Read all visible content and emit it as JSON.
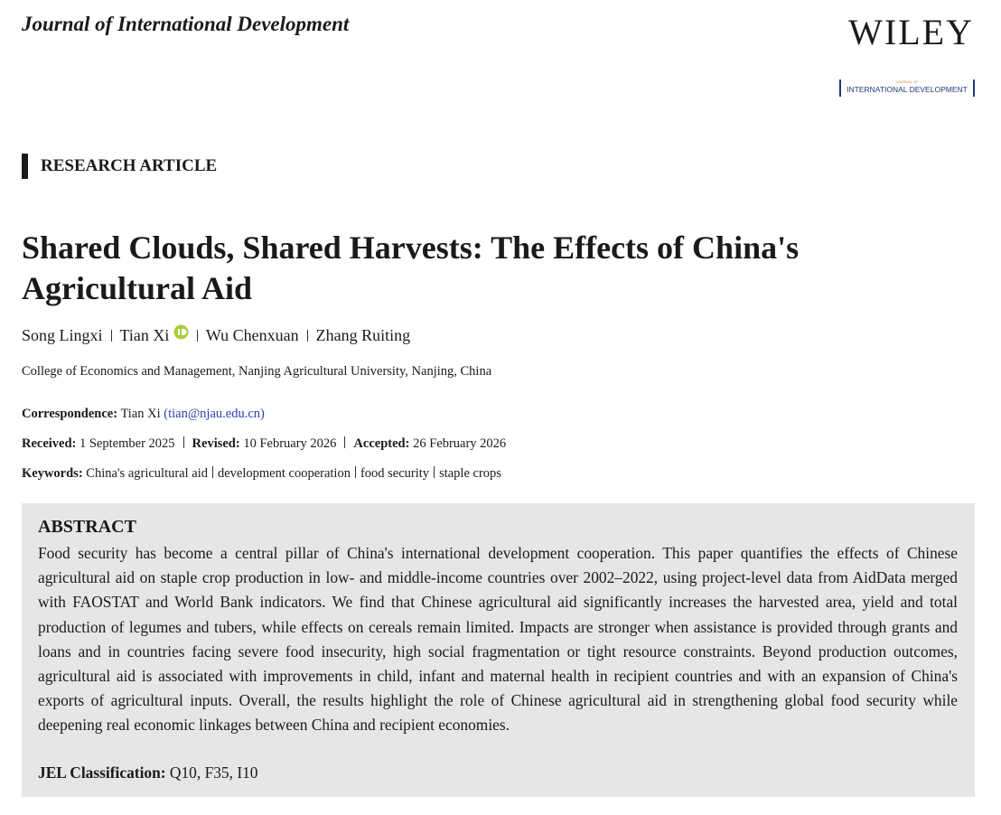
{
  "header": {
    "journal": "Journal of International Development",
    "publisher": "WILEY",
    "logo_top": "JOURNAL OF",
    "logo_main": "INTERNATIONAL DEVELOPMENT"
  },
  "article": {
    "section": "RESEARCH ARTICLE",
    "title": "Shared Clouds, Shared Harvests: The Effects of China's Agricultural Aid",
    "authors": [
      "Song Lingxi",
      "Tian Xi",
      "Wu Chenxuan",
      "Zhang Ruiting"
    ],
    "affiliation": "College of Economics and Management, Nanjing Agricultural University, Nanjing, China",
    "correspondence": {
      "label": "Correspondence:",
      "name": "Tian Xi",
      "email": "(tian@njau.edu.cn)"
    },
    "dates": [
      {
        "label": "Received:",
        "value": "1 September 2025"
      },
      {
        "label": "Revised:",
        "value": "10 February 2026"
      },
      {
        "label": "Accepted:",
        "value": "26 February 2026"
      }
    ],
    "keywords": {
      "label": "Keywords:",
      "items": [
        "China's agricultural aid",
        "development cooperation",
        "food security",
        "staple crops"
      ]
    },
    "abstract": {
      "heading": "ABSTRACT",
      "text": "Food security has become a central pillar of China's international development cooperation. This paper quantifies the effects of Chinese agricultural aid on staple crop production in low- and middle-income countries over 2002–2022, using project-level data from AidData merged with FAOSTAT and World Bank indicators. We find that Chinese agricultural aid significantly increases the harvested area, yield and total production of legumes and tubers, while effects on cereals remain limited. Impacts are stronger when assistance is provided through grants and loans and in countries facing severe food insecurity, high social fragmentation or tight resource constraints. Beyond production outcomes, agricultural aid is associated with improvements in child, infant and maternal health in recipient countries and with an expansion of China's exports of agricultural inputs. Overall, the results highlight the role of Chinese agricultural aid in strengthening global food security while deepening real economic linkages between China and recipient economies.",
      "jel_label": "JEL Classification:",
      "jel_value": "Q10, F35, I10"
    }
  }
}
